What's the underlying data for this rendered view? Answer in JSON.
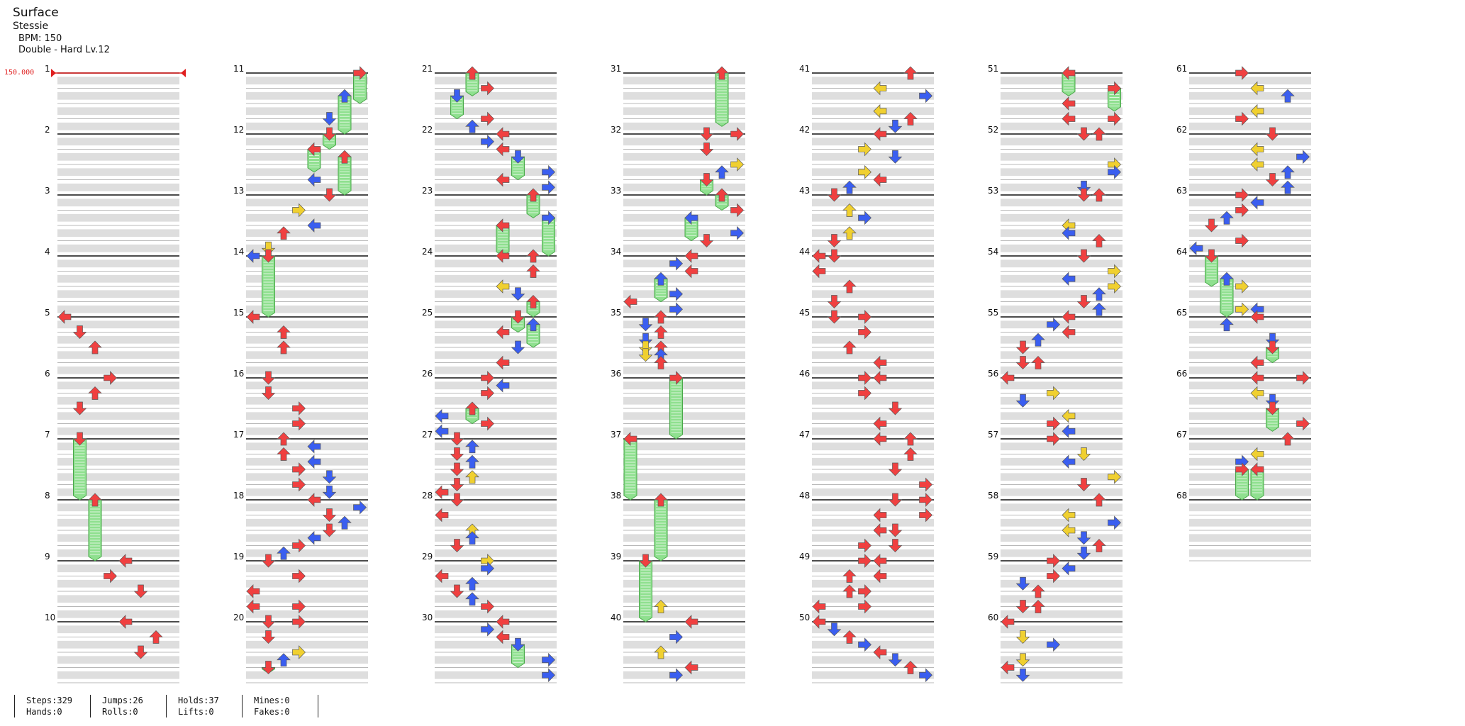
{
  "song": {
    "title": "Surface",
    "artist": "Stessie",
    "bpm_text": "BPM: 150",
    "difficulty": "Double - Hard Lv.12"
  },
  "bpm_change_label": "150.000",
  "measure_labels": [
    "1",
    "2",
    "3",
    "4",
    "5",
    "6",
    "7",
    "8",
    "9",
    "10",
    "11",
    "12",
    "13",
    "14",
    "15",
    "16",
    "17",
    "18",
    "19",
    "20",
    "21",
    "22",
    "23",
    "24",
    "25",
    "26",
    "27",
    "28",
    "29",
    "30",
    "31",
    "32",
    "33",
    "34",
    "35",
    "36",
    "37",
    "38",
    "39",
    "40",
    "41",
    "42",
    "43",
    "44",
    "45",
    "46",
    "47",
    "48",
    "49",
    "50",
    "51",
    "52",
    "53",
    "54",
    "55",
    "56",
    "57",
    "58",
    "59",
    "60",
    "61",
    "62",
    "63",
    "64",
    "65",
    "66",
    "67",
    "68"
  ],
  "total_measures": 68,
  "measures_per_column": 10,
  "lanes": 8,
  "colors": {
    "quarter": "#f04040",
    "eighth": "#3a5ef0",
    "sixteenth": "#f0d030",
    "hold": "#8fe08f",
    "stripe": "#dedede",
    "bpm": "#e02020"
  },
  "notes": [
    [
      5.0,
      0,
      "q"
    ],
    [
      5.25,
      1,
      "q"
    ],
    [
      5.5,
      2,
      "q"
    ],
    [
      6.0,
      3,
      "q"
    ],
    [
      6.25,
      2,
      "q"
    ],
    [
      6.5,
      1,
      "q"
    ],
    [
      7.0,
      1,
      "q",
      8.0
    ],
    [
      8.0,
      2,
      "q",
      9.0
    ],
    [
      9.0,
      4,
      "q"
    ],
    [
      9.25,
      3,
      "q"
    ],
    [
      9.5,
      5,
      "q"
    ],
    [
      10.0,
      4,
      "q"
    ],
    [
      10.25,
      6,
      "q"
    ],
    [
      10.5,
      5,
      "q"
    ],
    [
      11.0,
      7,
      "q",
      11.5
    ],
    [
      11.375,
      6,
      "e",
      12.0
    ],
    [
      11.75,
      5,
      "e"
    ],
    [
      12.0,
      5,
      "q",
      12.25
    ],
    [
      12.25,
      4,
      "q",
      12.625
    ],
    [
      12.375,
      6,
      "q",
      13.0
    ],
    [
      12.75,
      4,
      "e"
    ],
    [
      13.0,
      5,
      "q"
    ],
    [
      13.25,
      3,
      "s"
    ],
    [
      13.5,
      4,
      "e"
    ],
    [
      13.625,
      2,
      "q"
    ],
    [
      13.875,
      1,
      "s"
    ],
    [
      14.0,
      0,
      "e"
    ],
    [
      14.0,
      1,
      "q",
      15.0
    ],
    [
      15.0,
      0,
      "q"
    ],
    [
      15.25,
      2,
      "q"
    ],
    [
      15.5,
      2,
      "q"
    ],
    [
      16.0,
      1,
      "q"
    ],
    [
      16.25,
      1,
      "q"
    ],
    [
      16.5,
      3,
      "q"
    ],
    [
      16.75,
      3,
      "q"
    ],
    [
      17.0,
      2,
      "q"
    ],
    [
      17.125,
      4,
      "e"
    ],
    [
      17.25,
      2,
      "q"
    ],
    [
      17.375,
      4,
      "e"
    ],
    [
      17.5,
      3,
      "q"
    ],
    [
      17.625,
      5,
      "e"
    ],
    [
      17.75,
      3,
      "q"
    ],
    [
      17.875,
      5,
      "e"
    ],
    [
      18.0,
      4,
      "q"
    ],
    [
      18.125,
      7,
      "e"
    ],
    [
      18.25,
      5,
      "q"
    ],
    [
      18.375,
      6,
      "e"
    ],
    [
      18.5,
      5,
      "q"
    ],
    [
      18.625,
      4,
      "e"
    ],
    [
      18.75,
      3,
      "q"
    ],
    [
      18.875,
      2,
      "e"
    ],
    [
      19.0,
      1,
      "q"
    ],
    [
      19.25,
      3,
      "q"
    ],
    [
      19.5,
      0,
      "q"
    ],
    [
      19.75,
      0,
      "q"
    ],
    [
      19.75,
      3,
      "q"
    ],
    [
      20.0,
      1,
      "q"
    ],
    [
      20.0,
      3,
      "q"
    ],
    [
      20.25,
      1,
      "q"
    ],
    [
      20.5,
      3,
      "s"
    ],
    [
      20.625,
      2,
      "e"
    ],
    [
      20.75,
      1,
      "q",
      21.0
    ],
    [
      21.0,
      2,
      "q",
      21.375
    ],
    [
      21.25,
      3,
      "q"
    ],
    [
      21.375,
      1,
      "e",
      21.75
    ],
    [
      21.75,
      3,
      "q"
    ],
    [
      21.875,
      2,
      "e"
    ],
    [
      22.0,
      4,
      "q"
    ],
    [
      22.125,
      3,
      "e"
    ],
    [
      22.25,
      4,
      "q"
    ],
    [
      22.375,
      5,
      "e",
      22.75
    ],
    [
      22.625,
      7,
      "e"
    ],
    [
      22.75,
      4,
      "q"
    ],
    [
      22.875,
      7,
      "e"
    ],
    [
      23.0,
      6,
      "q",
      23.375
    ],
    [
      23.375,
      7,
      "e",
      24.0
    ],
    [
      23.5,
      4,
      "q",
      24.0
    ],
    [
      24.0,
      4,
      "q"
    ],
    [
      24.0,
      6,
      "q"
    ],
    [
      24.25,
      6,
      "q"
    ],
    [
      24.5,
      4,
      "s"
    ],
    [
      24.625,
      5,
      "e"
    ],
    [
      24.75,
      6,
      "q",
      25.0
    ],
    [
      25.0,
      5,
      "q",
      25.25
    ],
    [
      25.125,
      6,
      "e",
      25.5
    ],
    [
      25.25,
      4,
      "q"
    ],
    [
      25.5,
      5,
      "e"
    ],
    [
      25.75,
      4,
      "q"
    ],
    [
      26.0,
      3,
      "q"
    ],
    [
      26.125,
      4,
      "e"
    ],
    [
      26.25,
      3,
      "q"
    ],
    [
      26.5,
      2,
      "q",
      26.75
    ],
    [
      26.625,
      0,
      "e"
    ],
    [
      26.75,
      3,
      "q"
    ],
    [
      26.875,
      0,
      "e"
    ],
    [
      27.0,
      1,
      "q"
    ],
    [
      27.125,
      2,
      "e"
    ],
    [
      27.25,
      1,
      "q"
    ],
    [
      27.375,
      2,
      "e"
    ],
    [
      27.5,
      1,
      "q"
    ],
    [
      27.625,
      2,
      "s"
    ],
    [
      27.75,
      1,
      "q"
    ],
    [
      27.875,
      0,
      "q"
    ],
    [
      28.0,
      1,
      "q"
    ],
    [
      28.25,
      0,
      "q"
    ],
    [
      28.5,
      2,
      "s"
    ],
    [
      28.625,
      2,
      "e"
    ],
    [
      28.75,
      1,
      "q"
    ],
    [
      29.0,
      3,
      "s"
    ],
    [
      29.125,
      3,
      "e"
    ],
    [
      29.25,
      0,
      "q"
    ],
    [
      29.375,
      2,
      "e"
    ],
    [
      29.5,
      1,
      "q"
    ],
    [
      29.625,
      2,
      "e"
    ],
    [
      29.75,
      3,
      "q"
    ],
    [
      30.0,
      4,
      "q"
    ],
    [
      30.125,
      3,
      "e"
    ],
    [
      30.25,
      4,
      "q"
    ],
    [
      30.375,
      5,
      "e",
      30.75
    ],
    [
      30.625,
      7,
      "e"
    ],
    [
      30.875,
      7,
      "e"
    ],
    [
      31.0,
      6,
      "q",
      31.875
    ],
    [
      32.0,
      5,
      "q"
    ],
    [
      32.0,
      7,
      "q"
    ],
    [
      32.25,
      5,
      "q"
    ],
    [
      32.5,
      7,
      "s"
    ],
    [
      32.625,
      6,
      "e"
    ],
    [
      32.75,
      5,
      "q",
      33.0
    ],
    [
      33.0,
      6,
      "q",
      33.25
    ],
    [
      33.25,
      7,
      "q"
    ],
    [
      33.375,
      4,
      "e",
      33.75
    ],
    [
      33.625,
      7,
      "e"
    ],
    [
      33.75,
      5,
      "q"
    ],
    [
      34.0,
      4,
      "q"
    ],
    [
      34.125,
      3,
      "e"
    ],
    [
      34.25,
      4,
      "q"
    ],
    [
      34.375,
      2,
      "e",
      34.75
    ],
    [
      34.625,
      3,
      "e"
    ],
    [
      34.75,
      0,
      "q"
    ],
    [
      34.875,
      3,
      "e"
    ],
    [
      35.0,
      2,
      "q"
    ],
    [
      35.125,
      1,
      "e"
    ],
    [
      35.25,
      2,
      "q"
    ],
    [
      35.375,
      1,
      "e"
    ],
    [
      35.5,
      2,
      "q"
    ],
    [
      35.5,
      1,
      "s"
    ],
    [
      35.625,
      2,
      "e"
    ],
    [
      35.625,
      1,
      "s"
    ],
    [
      35.75,
      2,
      "q"
    ],
    [
      36.0,
      3,
      "q",
      37.0
    ],
    [
      37.0,
      0,
      "q",
      38.0
    ],
    [
      38.0,
      2,
      "q",
      39.0
    ],
    [
      39.0,
      1,
      "q",
      40.0
    ],
    [
      39.75,
      2,
      "s"
    ],
    [
      40.0,
      4,
      "q"
    ],
    [
      40.25,
      3,
      "e"
    ],
    [
      40.5,
      2,
      "s"
    ],
    [
      40.75,
      4,
      "q"
    ],
    [
      40.875,
      3,
      "e"
    ],
    [
      41.0,
      6,
      "q"
    ],
    [
      41.25,
      4,
      "s"
    ],
    [
      41.375,
      7,
      "e"
    ],
    [
      41.625,
      4,
      "s"
    ],
    [
      41.75,
      6,
      "q"
    ],
    [
      41.875,
      5,
      "e"
    ],
    [
      42.0,
      4,
      "q"
    ],
    [
      42.25,
      3,
      "s"
    ],
    [
      42.375,
      5,
      "e"
    ],
    [
      42.625,
      3,
      "s"
    ],
    [
      42.75,
      4,
      "q"
    ],
    [
      42.875,
      2,
      "e"
    ],
    [
      43.0,
      1,
      "q"
    ],
    [
      43.25,
      2,
      "s"
    ],
    [
      43.375,
      3,
      "e"
    ],
    [
      43.625,
      2,
      "s"
    ],
    [
      43.75,
      1,
      "q"
    ],
    [
      44.0,
      0,
      "q"
    ],
    [
      44.0,
      1,
      "q"
    ],
    [
      44.25,
      0,
      "q"
    ],
    [
      44.5,
      2,
      "q"
    ],
    [
      44.75,
      1,
      "q"
    ],
    [
      45.0,
      1,
      "q"
    ],
    [
      45.0,
      3,
      "q"
    ],
    [
      45.25,
      3,
      "q"
    ],
    [
      45.5,
      2,
      "q"
    ],
    [
      45.75,
      4,
      "q"
    ],
    [
      46.0,
      3,
      "q"
    ],
    [
      46.0,
      4,
      "q"
    ],
    [
      46.25,
      3,
      "q"
    ],
    [
      46.5,
      5,
      "q"
    ],
    [
      46.75,
      4,
      "q"
    ],
    [
      47.0,
      4,
      "q"
    ],
    [
      47.0,
      6,
      "q"
    ],
    [
      47.25,
      6,
      "q"
    ],
    [
      47.5,
      5,
      "q"
    ],
    [
      47.75,
      7,
      "q"
    ],
    [
      48.0,
      5,
      "q"
    ],
    [
      48.0,
      7,
      "q"
    ],
    [
      48.25,
      4,
      "q"
    ],
    [
      48.25,
      7,
      "q"
    ],
    [
      48.5,
      4,
      "q"
    ],
    [
      48.5,
      5,
      "q"
    ],
    [
      48.75,
      3,
      "q"
    ],
    [
      48.75,
      5,
      "q"
    ],
    [
      49.0,
      3,
      "q"
    ],
    [
      49.0,
      4,
      "q"
    ],
    [
      49.25,
      2,
      "q"
    ],
    [
      49.25,
      4,
      "q"
    ],
    [
      49.5,
      2,
      "q"
    ],
    [
      49.5,
      3,
      "q"
    ],
    [
      49.75,
      0,
      "q"
    ],
    [
      49.75,
      3,
      "q"
    ],
    [
      50.0,
      0,
      "q"
    ],
    [
      50.125,
      1,
      "e"
    ],
    [
      50.25,
      2,
      "q"
    ],
    [
      50.375,
      3,
      "e"
    ],
    [
      50.5,
      4,
      "q"
    ],
    [
      50.625,
      5,
      "e"
    ],
    [
      50.75,
      6,
      "q"
    ],
    [
      50.875,
      7,
      "e"
    ],
    [
      51.0,
      4,
      "q",
      51.375
    ],
    [
      51.25,
      7,
      "q",
      51.625
    ],
    [
      51.5,
      4,
      "q"
    ],
    [
      51.75,
      4,
      "q"
    ],
    [
      51.75,
      7,
      "q"
    ],
    [
      52.0,
      5,
      "q"
    ],
    [
      52.0,
      6,
      "q"
    ],
    [
      52.5,
      7,
      "s"
    ],
    [
      52.625,
      7,
      "e"
    ],
    [
      52.875,
      5,
      "e"
    ],
    [
      53.0,
      5,
      "q"
    ],
    [
      53.0,
      6,
      "q"
    ],
    [
      53.5,
      4,
      "s"
    ],
    [
      53.625,
      4,
      "e"
    ],
    [
      53.75,
      6,
      "q"
    ],
    [
      54.0,
      5,
      "q"
    ],
    [
      54.25,
      7,
      "s"
    ],
    [
      54.375,
      4,
      "e"
    ],
    [
      54.5,
      7,
      "s"
    ],
    [
      54.625,
      6,
      "e"
    ],
    [
      54.75,
      5,
      "q"
    ],
    [
      54.875,
      6,
      "e"
    ],
    [
      55.0,
      4,
      "q"
    ],
    [
      55.125,
      3,
      "e"
    ],
    [
      55.25,
      4,
      "q"
    ],
    [
      55.375,
      2,
      "e"
    ],
    [
      55.5,
      1,
      "q"
    ],
    [
      55.75,
      1,
      "q"
    ],
    [
      55.75,
      2,
      "q"
    ],
    [
      56.0,
      0,
      "q"
    ],
    [
      56.25,
      3,
      "s"
    ],
    [
      56.375,
      1,
      "e"
    ],
    [
      56.625,
      4,
      "s"
    ],
    [
      56.75,
      3,
      "q"
    ],
    [
      56.875,
      4,
      "e"
    ],
    [
      57.0,
      3,
      "q"
    ],
    [
      57.25,
      5,
      "s"
    ],
    [
      57.375,
      4,
      "e"
    ],
    [
      57.625,
      7,
      "s"
    ],
    [
      57.75,
      5,
      "q"
    ],
    [
      58.0,
      6,
      "q"
    ],
    [
      58.25,
      4,
      "s"
    ],
    [
      58.375,
      7,
      "e"
    ],
    [
      58.5,
      4,
      "s"
    ],
    [
      58.625,
      5,
      "e"
    ],
    [
      58.75,
      6,
      "q"
    ],
    [
      58.875,
      5,
      "e"
    ],
    [
      59.0,
      3,
      "q"
    ],
    [
      59.125,
      4,
      "e"
    ],
    [
      59.25,
      3,
      "q"
    ],
    [
      59.375,
      1,
      "e"
    ],
    [
      59.5,
      2,
      "q"
    ],
    [
      59.75,
      1,
      "q"
    ],
    [
      59.75,
      2,
      "q"
    ],
    [
      60.0,
      0,
      "q"
    ],
    [
      60.25,
      1,
      "s"
    ],
    [
      60.375,
      3,
      "e"
    ],
    [
      60.625,
      1,
      "s"
    ],
    [
      60.75,
      0,
      "q"
    ],
    [
      60.875,
      1,
      "e"
    ],
    [
      61.0,
      3,
      "q"
    ],
    [
      61.25,
      4,
      "s"
    ],
    [
      61.375,
      6,
      "e"
    ],
    [
      61.625,
      4,
      "s"
    ],
    [
      61.75,
      3,
      "q"
    ],
    [
      62.0,
      5,
      "q"
    ],
    [
      62.25,
      4,
      "s"
    ],
    [
      62.375,
      7,
      "e"
    ],
    [
      62.5,
      4,
      "s"
    ],
    [
      62.625,
      6,
      "e"
    ],
    [
      62.75,
      5,
      "q"
    ],
    [
      62.875,
      6,
      "e"
    ],
    [
      63.0,
      3,
      "q"
    ],
    [
      63.125,
      4,
      "e"
    ],
    [
      63.25,
      3,
      "q"
    ],
    [
      63.375,
      2,
      "e"
    ],
    [
      63.5,
      1,
      "q"
    ],
    [
      63.75,
      3,
      "q"
    ],
    [
      63.875,
      0,
      "e"
    ],
    [
      64.0,
      1,
      "q",
      64.5
    ],
    [
      64.375,
      2,
      "e",
      65.0
    ],
    [
      64.5,
      3,
      "s"
    ],
    [
      64.875,
      4,
      "e"
    ],
    [
      64.875,
      3,
      "s"
    ],
    [
      65.0,
      4,
      "q"
    ],
    [
      65.125,
      2,
      "e"
    ],
    [
      65.375,
      5,
      "e"
    ],
    [
      65.5,
      5,
      "q",
      65.75
    ],
    [
      65.75,
      4,
      "q"
    ],
    [
      66.0,
      4,
      "q"
    ],
    [
      66.0,
      7,
      "q"
    ],
    [
      66.25,
      4,
      "s"
    ],
    [
      66.375,
      5,
      "e"
    ],
    [
      66.5,
      5,
      "q",
      66.875
    ],
    [
      66.75,
      7,
      "q"
    ],
    [
      67.0,
      6,
      "q"
    ],
    [
      67.25,
      4,
      "s"
    ],
    [
      67.375,
      3,
      "e"
    ],
    [
      67.5,
      3,
      "q",
      68.0
    ],
    [
      67.5,
      4,
      "q",
      68.0
    ]
  ],
  "stats": [
    {
      "line1": "Steps:329",
      "line2": "Hands:0"
    },
    {
      "line1": "Jumps:26",
      "line2": "Rolls:0"
    },
    {
      "line1": "Holds:37",
      "line2": "Lifts:0"
    },
    {
      "line1": "Mines:0",
      "line2": "Fakes:0"
    }
  ]
}
